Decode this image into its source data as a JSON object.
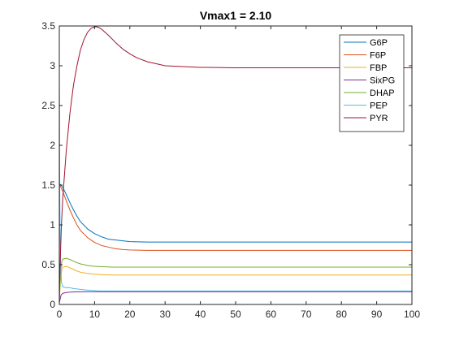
{
  "chart_data": {
    "type": "line",
    "title": "Vmax1 = 2.10",
    "xlabel": "",
    "ylabel": "",
    "xlim": [
      0,
      100
    ],
    "ylim": [
      0,
      3.5
    ],
    "xticks": [
      0,
      10,
      20,
      30,
      40,
      50,
      60,
      70,
      80,
      90,
      100
    ],
    "yticks": [
      0,
      0.5,
      1,
      1.5,
      2,
      2.5,
      3,
      3.5
    ],
    "xtick_labels": [
      "0",
      "10",
      "20",
      "30",
      "40",
      "50",
      "60",
      "70",
      "80",
      "90",
      "100"
    ],
    "ytick_labels": [
      "0",
      "0.5",
      "1",
      "1.5",
      "2",
      "2.5",
      "3",
      "3.5"
    ],
    "grid": false,
    "legend_position": "top-right",
    "series": [
      {
        "name": "G6P",
        "color": "#0072BD",
        "x": [
          0,
          0.5,
          1,
          2,
          3,
          4,
          5,
          6,
          8,
          10,
          12,
          14,
          16,
          18,
          20,
          25,
          30,
          40,
          50,
          60,
          70,
          80,
          90,
          100
        ],
        "y": [
          1.52,
          1.5,
          1.47,
          1.38,
          1.28,
          1.19,
          1.11,
          1.04,
          0.95,
          0.89,
          0.85,
          0.82,
          0.81,
          0.8,
          0.79,
          0.785,
          0.785,
          0.785,
          0.785,
          0.785,
          0.785,
          0.785,
          0.785,
          0.785
        ]
      },
      {
        "name": "F6P",
        "color": "#D95319",
        "x": [
          0,
          0.5,
          1,
          2,
          3,
          4,
          5,
          6,
          8,
          10,
          12,
          14,
          16,
          18,
          20,
          25,
          30,
          40,
          50,
          60,
          70,
          80,
          90,
          100
        ],
        "y": [
          1.52,
          1.47,
          1.42,
          1.3,
          1.19,
          1.09,
          1.0,
          0.93,
          0.84,
          0.78,
          0.74,
          0.72,
          0.7,
          0.69,
          0.685,
          0.68,
          0.68,
          0.68,
          0.68,
          0.68,
          0.68,
          0.68,
          0.68,
          0.68
        ]
      },
      {
        "name": "FBP",
        "color": "#EDB120",
        "x": [
          0,
          0.3,
          0.7,
          1,
          2,
          3,
          4,
          5,
          6,
          8,
          10,
          12,
          15,
          20,
          30,
          40,
          50,
          60,
          70,
          80,
          90,
          100
        ],
        "y": [
          0.02,
          0.3,
          0.44,
          0.47,
          0.48,
          0.46,
          0.44,
          0.42,
          0.405,
          0.39,
          0.38,
          0.375,
          0.37,
          0.37,
          0.37,
          0.37,
          0.37,
          0.37,
          0.37,
          0.37,
          0.37,
          0.37
        ]
      },
      {
        "name": "SixPG",
        "color": "#7E2F8E",
        "x": [
          0,
          0.5,
          1,
          2,
          3,
          5,
          7,
          10,
          15,
          20,
          30,
          40,
          50,
          60,
          70,
          80,
          90,
          100
        ],
        "y": [
          0.02,
          0.12,
          0.14,
          0.15,
          0.155,
          0.158,
          0.16,
          0.16,
          0.16,
          0.16,
          0.16,
          0.16,
          0.16,
          0.16,
          0.16,
          0.16,
          0.16,
          0.16
        ]
      },
      {
        "name": "DHAP",
        "color": "#77AC30",
        "x": [
          0,
          0.3,
          0.7,
          1,
          2,
          3,
          4,
          5,
          6,
          8,
          10,
          12,
          15,
          20,
          30,
          40,
          50,
          60,
          70,
          80,
          90,
          100
        ],
        "y": [
          0.02,
          0.38,
          0.54,
          0.57,
          0.58,
          0.565,
          0.545,
          0.525,
          0.51,
          0.49,
          0.48,
          0.475,
          0.47,
          0.47,
          0.47,
          0.47,
          0.47,
          0.47,
          0.47,
          0.47,
          0.47,
          0.47
        ]
      },
      {
        "name": "PEP",
        "color": "#4DBEEE",
        "x": [
          0,
          0.15,
          0.3,
          0.6,
          1,
          2,
          3,
          4,
          5,
          6,
          8,
          10,
          12,
          15,
          20,
          30,
          40,
          50,
          60,
          70,
          80,
          90,
          100
        ],
        "y": [
          3.0,
          1.3,
          0.6,
          0.28,
          0.22,
          0.21,
          0.21,
          0.2,
          0.195,
          0.19,
          0.18,
          0.175,
          0.17,
          0.17,
          0.17,
          0.17,
          0.17,
          0.17,
          0.17,
          0.17,
          0.17,
          0.17,
          0.17
        ]
      },
      {
        "name": "PYR",
        "color": "#A2142F",
        "x": [
          0,
          0.3,
          0.6,
          1,
          1.5,
          2,
          3,
          4,
          5,
          6,
          7,
          8,
          9,
          10,
          10.5,
          11,
          12,
          13,
          14,
          16,
          18,
          20,
          22,
          25,
          28,
          30,
          35,
          40,
          50,
          60,
          70,
          80,
          90,
          100
        ],
        "y": [
          0.1,
          0.6,
          1.0,
          1.35,
          1.65,
          1.95,
          2.4,
          2.75,
          3.0,
          3.2,
          3.33,
          3.42,
          3.47,
          3.49,
          3.49,
          3.485,
          3.46,
          3.42,
          3.38,
          3.29,
          3.21,
          3.15,
          3.1,
          3.05,
          3.02,
          3.0,
          2.99,
          2.98,
          2.975,
          2.975,
          2.975,
          2.975,
          2.975,
          2.975
        ]
      }
    ]
  }
}
